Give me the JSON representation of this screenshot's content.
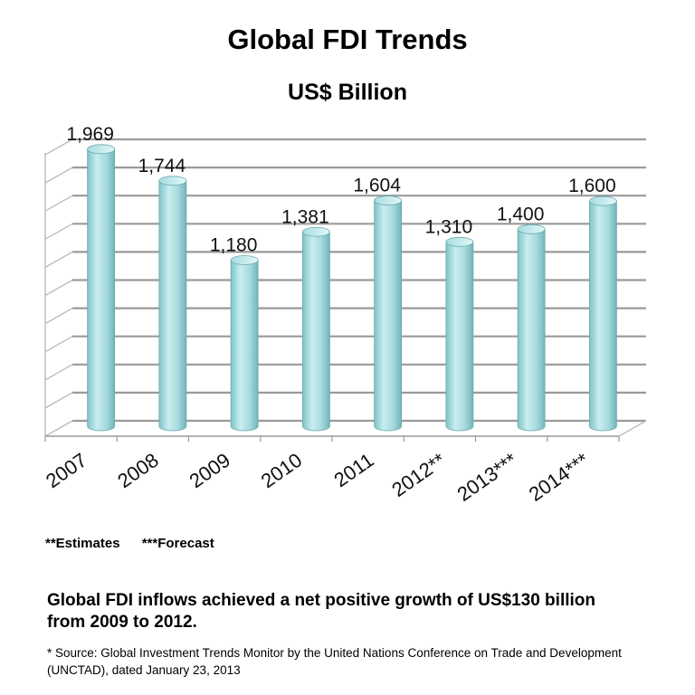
{
  "chart_data": {
    "type": "bar",
    "title": "Global FDI Trends",
    "subtitle": "US$ Billion",
    "categories": [
      "2007",
      "2008",
      "2009",
      "2010",
      "2011",
      "2012**",
      "2013***",
      "2014***"
    ],
    "values": [
      1969,
      1744,
      1180,
      1381,
      1604,
      1310,
      1400,
      1600
    ],
    "value_labels": [
      "1,969",
      "1,744",
      "1,180",
      "1,381",
      "1,604",
      "1,310",
      "1,400",
      "1,600"
    ],
    "ylim": [
      0,
      2000
    ],
    "grid": true,
    "bar_color": "#a9dcdf"
  },
  "notes": {
    "estimates": "**Estimates",
    "forecast": "***Forecast"
  },
  "summary": "Global FDI inflows achieved a net positive growth of US$130 billion from 2009 to 2012.",
  "source": "* Source: Global Investment Trends Monitor by the United Nations Conference on Trade and Development (UNCTAD), dated January 23, 2013"
}
